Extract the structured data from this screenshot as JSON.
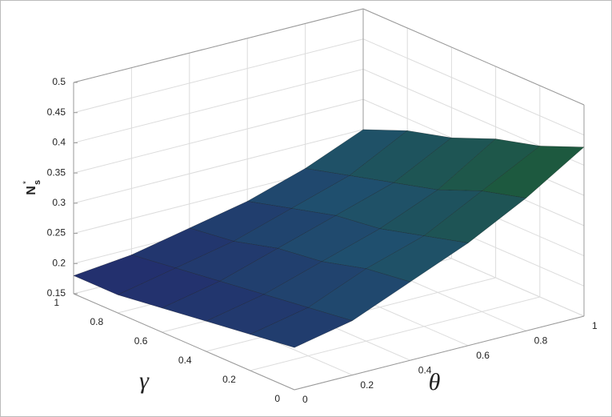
{
  "chart_data": {
    "type": "surface",
    "xlabel": "θ",
    "ylabel": "γ",
    "zlabel": "N",
    "zlabel_sup": "*",
    "zlabel_sub": "s",
    "x": [
      0,
      0.2,
      0.4,
      0.6,
      0.8,
      1
    ],
    "y": [
      0,
      0.2,
      0.4,
      0.6,
      0.8,
      1
    ],
    "z": [
      [
        0.22,
        0.24,
        0.28,
        0.32,
        0.37,
        0.43
      ],
      [
        0.21,
        0.23,
        0.27,
        0.3,
        0.35,
        0.4
      ],
      [
        0.2,
        0.22,
        0.25,
        0.28,
        0.32,
        0.38
      ],
      [
        0.19,
        0.21,
        0.24,
        0.27,
        0.3,
        0.35
      ],
      [
        0.18,
        0.2,
        0.22,
        0.25,
        0.28,
        0.33
      ],
      [
        0.18,
        0.19,
        0.21,
        0.23,
        0.26,
        0.3
      ]
    ],
    "xlim": [
      0,
      1
    ],
    "ylim": [
      0,
      1
    ],
    "zlim": [
      0.15,
      0.5
    ],
    "xticks": [
      0,
      0.2,
      0.4,
      0.6,
      0.8,
      1
    ],
    "yticks": [
      0,
      0.2,
      0.4,
      0.6,
      0.8,
      1
    ],
    "zticks": [
      0.15,
      0.2,
      0.25,
      0.3,
      0.35,
      0.4,
      0.45,
      0.5
    ],
    "grid": true,
    "colormap": [
      "#25226e",
      "#1f4f6e",
      "#1d5a3a"
    ]
  }
}
